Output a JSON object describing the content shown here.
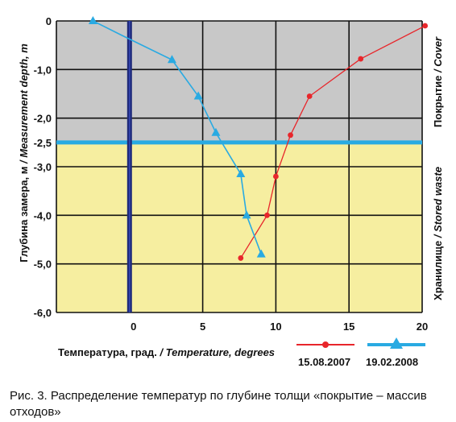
{
  "chart_data": {
    "type": "line",
    "xlabel": "Температура, град.",
    "xlabel_en": "/ Temperature, degrees",
    "ylabel": "Глубина замера, м",
    "ylabel_en": "/ Measurement depth, m",
    "xlim": [
      -5,
      20
    ],
    "ylim": [
      -6.0,
      0
    ],
    "x_ticks": [
      0,
      5,
      10,
      15,
      20
    ],
    "x_tick_labels": [
      "0",
      "5",
      "10",
      "15",
      "20"
    ],
    "y_ticks": [
      0,
      -1.0,
      -2.0,
      -2.5,
      -3.0,
      -4.0,
      -5.0,
      -6.0
    ],
    "y_tick_labels": [
      "0",
      "-1,0",
      "-2,0",
      "-2,5",
      "-3,0",
      "-4,0",
      "-5,0",
      "-6,0"
    ],
    "grid": true,
    "zones": [
      {
        "name": "Покрытие",
        "name_en": "/ Cover",
        "from": 0,
        "to": -2.5,
        "color": "#c8c8c8"
      },
      {
        "name": "Хранилище",
        "name_en": "/ Stored waste",
        "from": -2.5,
        "to": -6.0,
        "color": "#f6eea0"
      }
    ],
    "boundary_depth": -2.5,
    "boundary_color": "#29aae2",
    "zero_line_color": "#1f2a7a",
    "series": [
      {
        "name": "15.08.2007",
        "color": "#e8262b",
        "marker": "circle",
        "points": [
          [
            20.2,
            -0.1
          ],
          [
            15.8,
            -0.78
          ],
          [
            12.3,
            -1.55
          ],
          [
            11.0,
            -2.35
          ],
          [
            10.0,
            -3.2
          ],
          [
            9.4,
            -4.0
          ],
          [
            7.6,
            -4.88
          ]
        ]
      },
      {
        "name": "19.02.2008",
        "color": "#29aae2",
        "marker": "triangle",
        "points": [
          [
            -2.5,
            0.0
          ],
          [
            -0.5,
            -0.3
          ],
          [
            2.9,
            -0.8
          ],
          [
            4.7,
            -1.55
          ],
          [
            5.9,
            -2.3
          ],
          [
            7.6,
            -3.15
          ],
          [
            8.0,
            -4.0
          ],
          [
            9.0,
            -4.8
          ]
        ]
      }
    ],
    "legend_position": "bottom-right"
  },
  "caption": "Рис. 3. Распределение температур по глубине толщи «покрытие – массив отходов»"
}
